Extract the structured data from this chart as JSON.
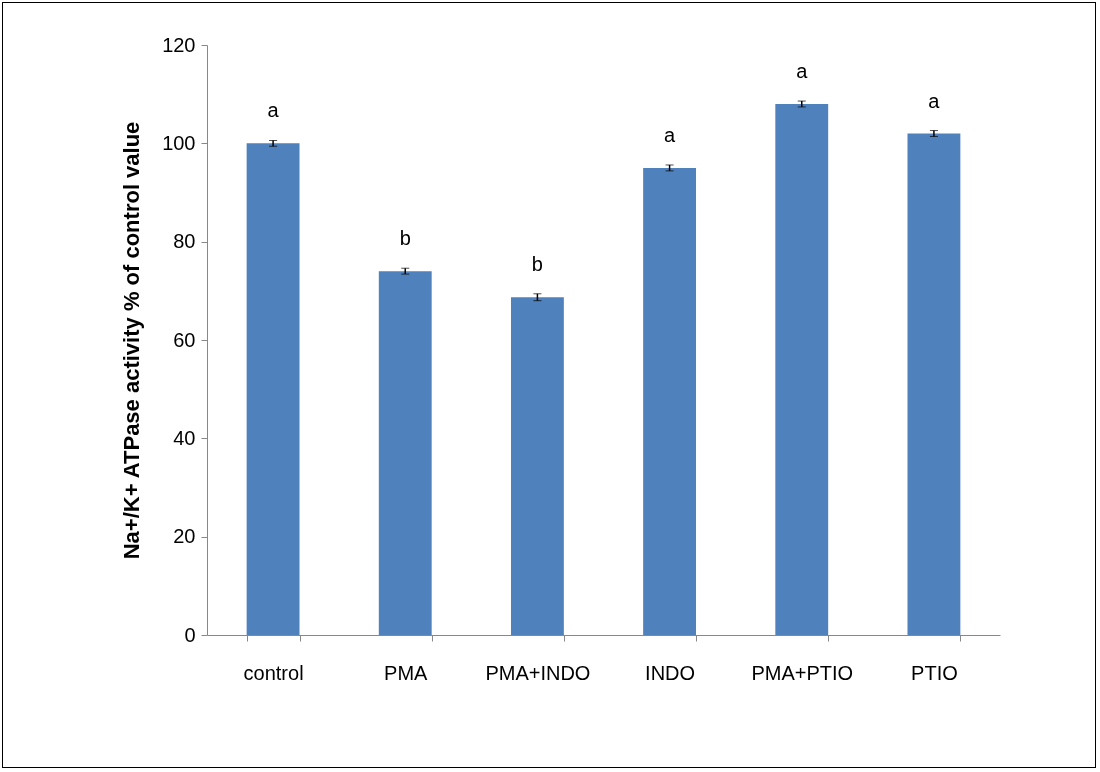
{
  "chart_data": {
    "type": "bar",
    "ylabel": "Na+/K+ ATPase activity % of control value",
    "categories": [
      "control",
      "PMA",
      "PMA+INDO",
      "INDO",
      "PMA+PTIO",
      "PTIO"
    ],
    "values": [
      100,
      74,
      68.7,
      95,
      108,
      102
    ],
    "errors": [
      0.6,
      0.6,
      0.7,
      0.6,
      0.6,
      0.6
    ],
    "color": "#4f81bd",
    "ylim": [
      0,
      120
    ],
    "yticks": [
      0,
      20,
      40,
      60,
      80,
      100,
      120
    ],
    "annotations": [
      {
        "text": "a",
        "x": "control",
        "y": 100
      },
      {
        "text": "b",
        "x": "PMA",
        "y": 74
      },
      {
        "text": "b",
        "x": "PMA+INDO",
        "y": 68.7
      },
      {
        "text": "a",
        "x": "INDO",
        "y": 95
      },
      {
        "text": "a",
        "x": "PMA+PTIO",
        "y": 108
      },
      {
        "text": "a",
        "x": "PTIO",
        "y": 102
      }
    ]
  }
}
